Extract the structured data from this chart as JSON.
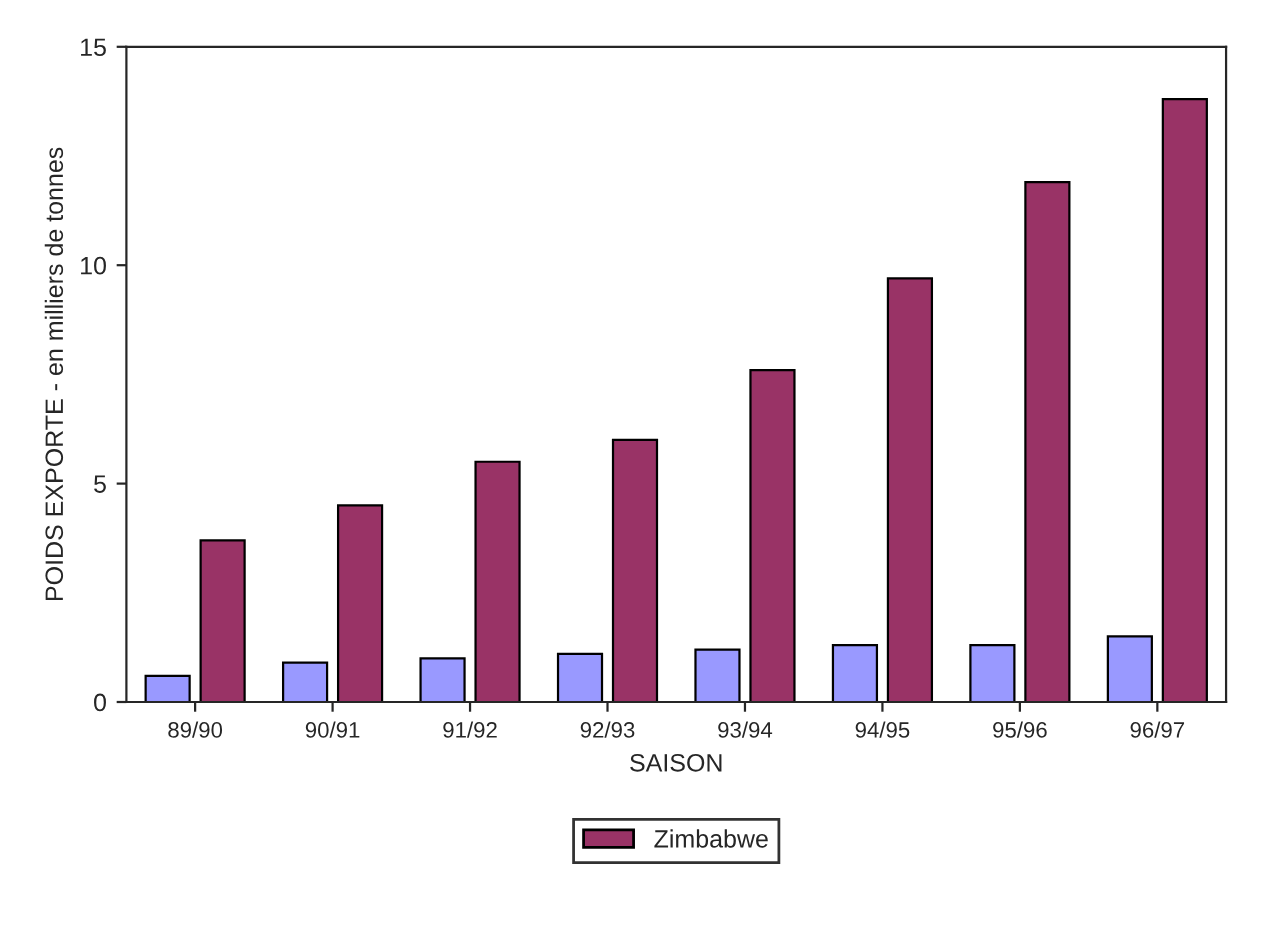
{
  "chart_data": {
    "type": "bar",
    "xlabel": "SAISON",
    "ylabel": "POIDS EXPORTE - en milliers de tonnes",
    "categories": [
      "89/90",
      "90/91",
      "91/92",
      "92/93",
      "93/94",
      "94/95",
      "95/96",
      "96/97"
    ],
    "series": [
      {
        "color": "#9999ff",
        "values": [
          0.6,
          0.9,
          1.0,
          1.1,
          1.2,
          1.3,
          1.3,
          1.5
        ]
      },
      {
        "name": "Zimbabwe",
        "color": "#993366",
        "values": [
          3.7,
          4.5,
          5.5,
          6.0,
          7.6,
          9.7,
          11.9,
          13.8
        ]
      }
    ],
    "ylim": [
      0,
      15
    ],
    "yticks": [
      0,
      5,
      10,
      15
    ],
    "grid": false,
    "legend": "bottom"
  }
}
